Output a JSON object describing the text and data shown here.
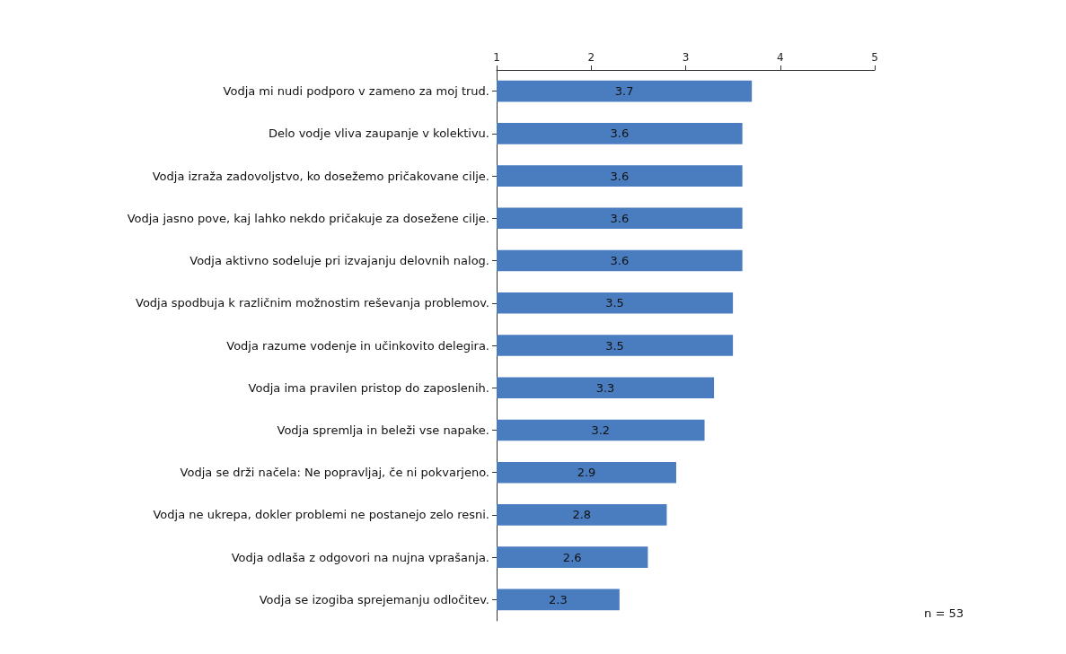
{
  "chart_data": {
    "type": "bar",
    "orientation": "horizontal",
    "categories": [
      "Vodja mi nudi podporo v zameno za moj trud.",
      "Delo vodje vliva zaupanje v kolektivu.",
      "Vodja izraža zadovoljstvo, ko dosežemo pričakovane cilje.",
      "Vodja jasno pove, kaj lahko nekdo pričakuje za dosežene cilje.",
      "Vodja aktivno sodeluje pri izvajanju delovnih nalog.",
      "Vodja spodbuja k različnim možnostim reševanja problemov.",
      "Vodja razume vodenje in učinkovito delegira.",
      "Vodja ima pravilen pristop do zaposlenih.",
      "Vodja spremlja in beleži vse napake.",
      "Vodja se drži načela: Ne popravljaj, če ni pokvarjeno.",
      "Vodja ne ukrepa, dokler problemi ne postanejo zelo resni.",
      "Vodja odlaša z odgovori na nujna vprašanja.",
      "Vodja se izogiba sprejemanju odločitev."
    ],
    "values": [
      3.7,
      3.6,
      3.6,
      3.6,
      3.6,
      3.5,
      3.5,
      3.3,
      3.2,
      2.9,
      2.8,
      2.6,
      2.3
    ],
    "color": "#4a7dc0",
    "xlim": [
      1,
      5
    ],
    "xticks": [
      1,
      2,
      3,
      4,
      5
    ],
    "data_labels": true,
    "grid": false,
    "annotations": [
      "n = 53"
    ]
  }
}
